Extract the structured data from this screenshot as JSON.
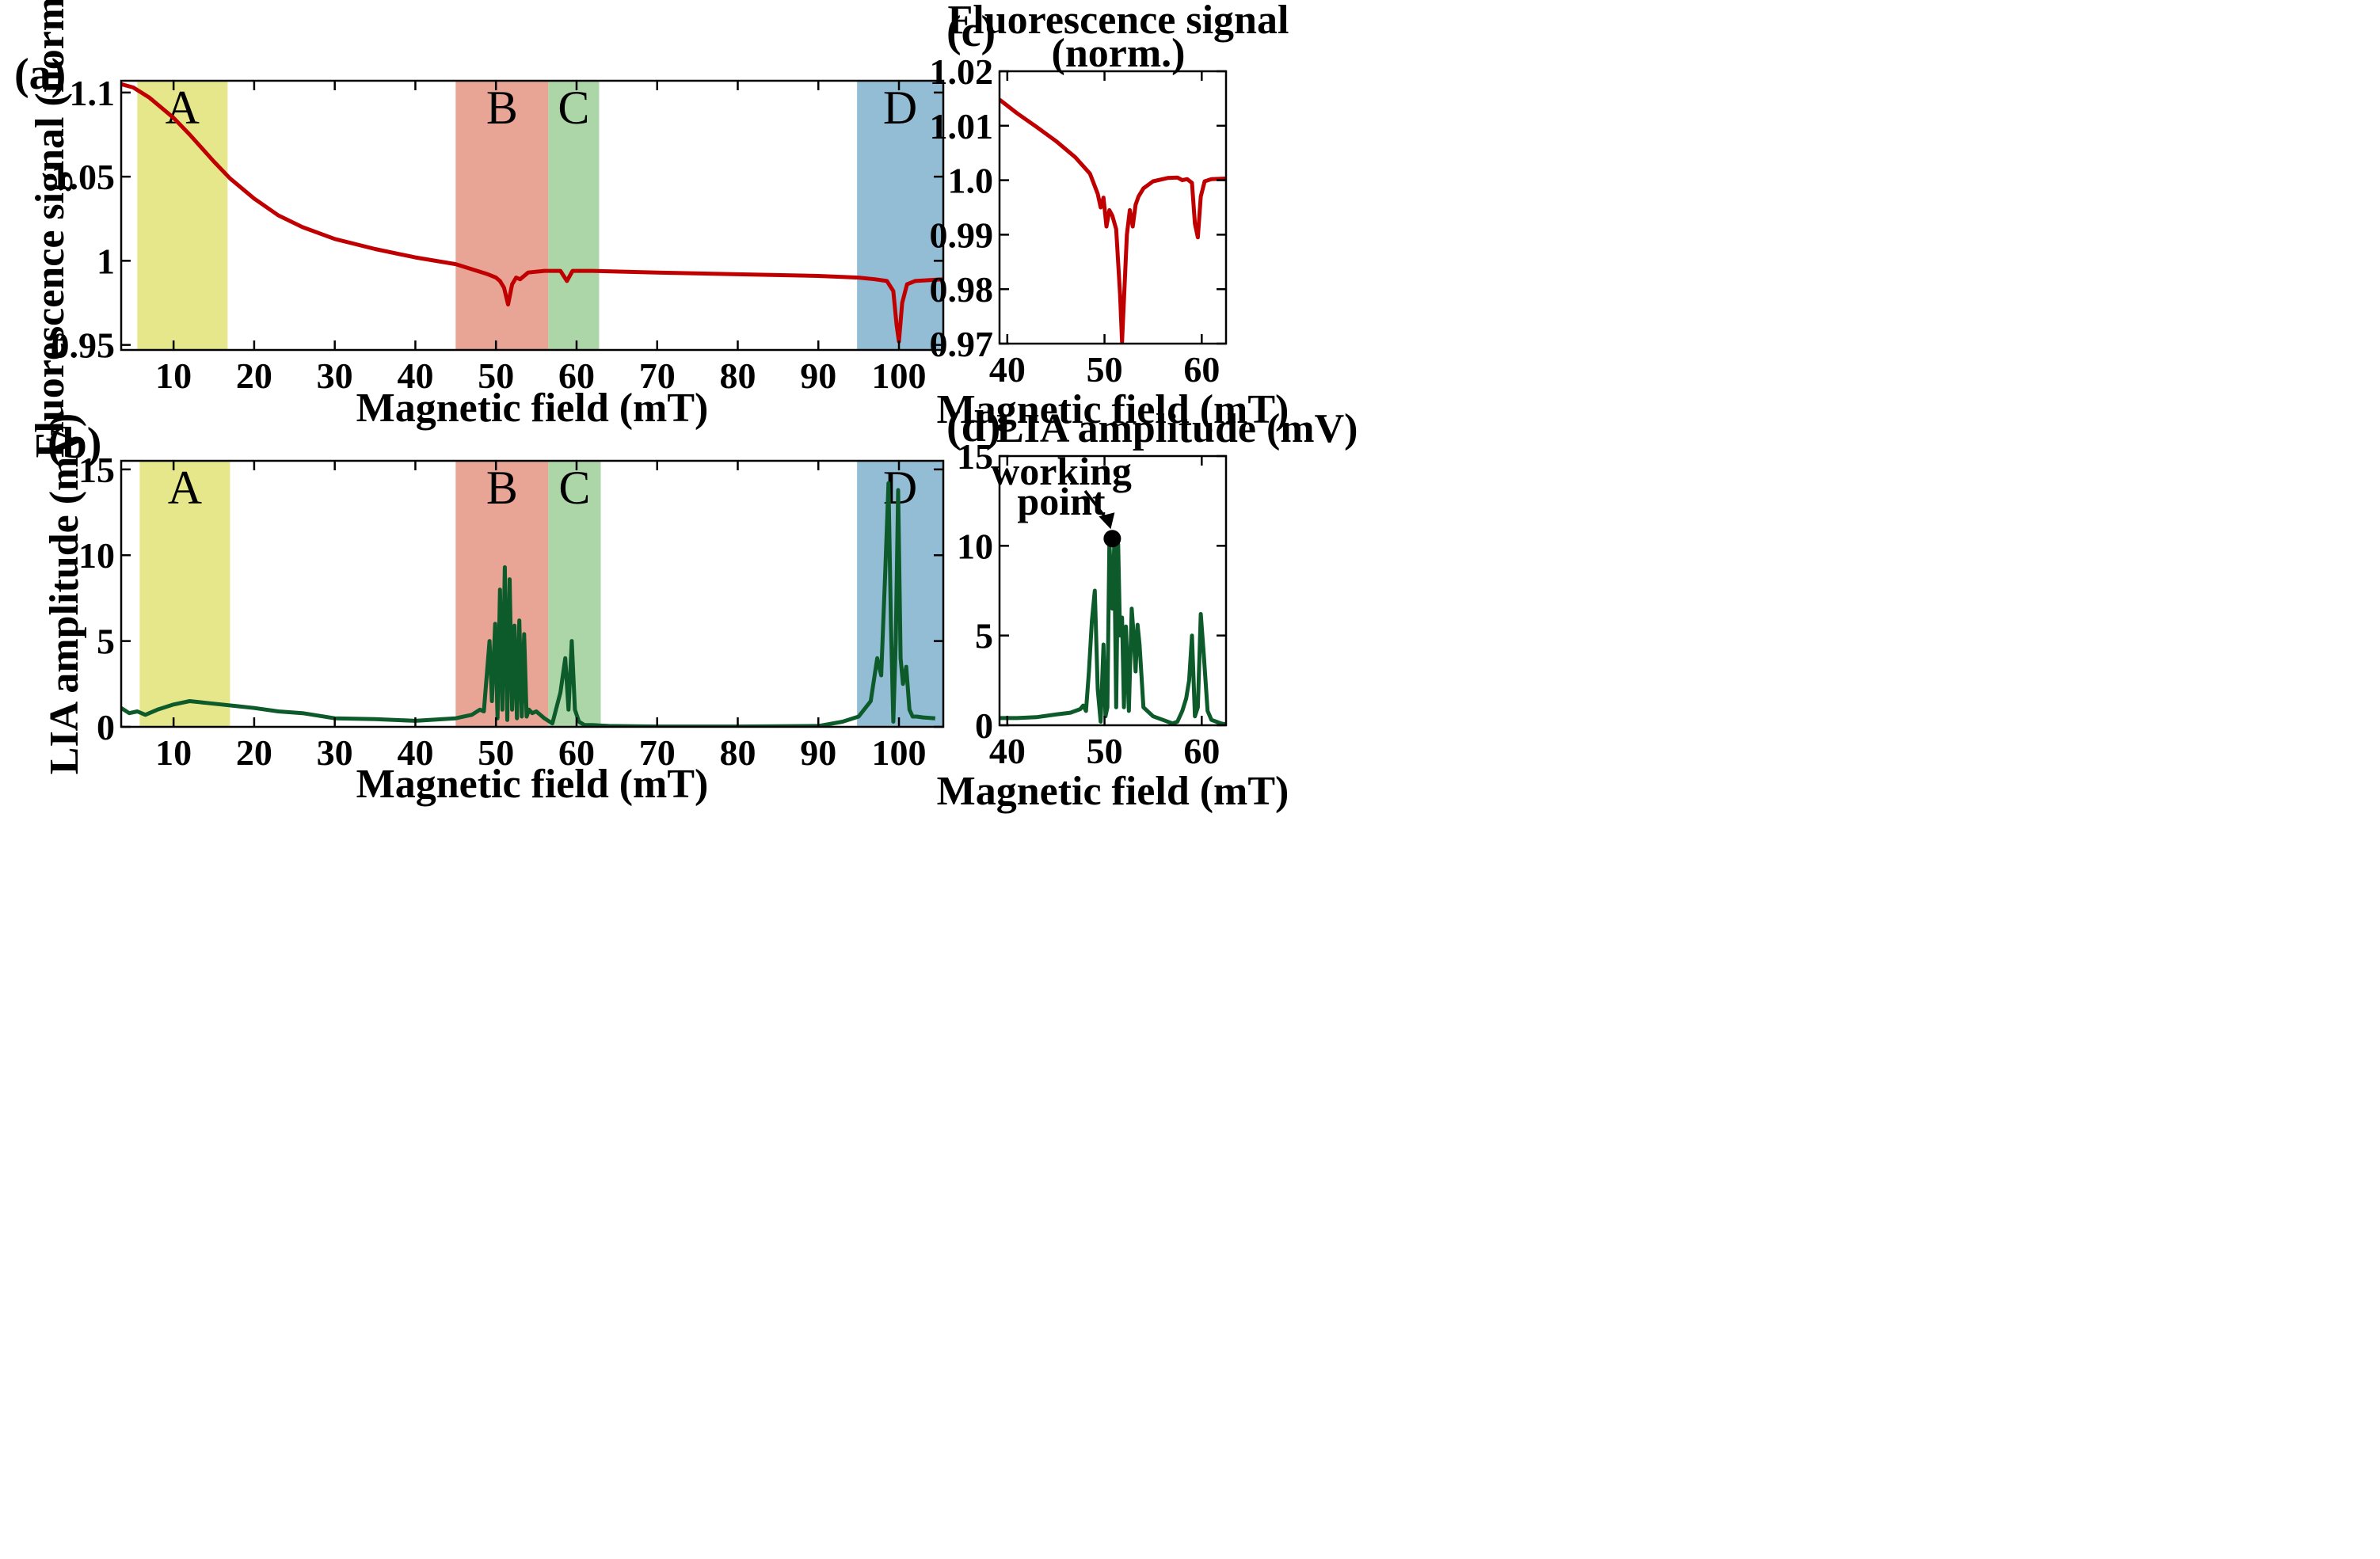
{
  "chart_data": [
    {
      "id": "a",
      "type": "line",
      "panel_label": "(a)",
      "xlabel": "Magnetic field (mT)",
      "ylabel": "Fluorescence signal (norm.)",
      "xlim": [
        3.5,
        105.5
      ],
      "ylim": [
        0.947,
        1.107
      ],
      "xticks": [
        10,
        20,
        30,
        40,
        50,
        60,
        70,
        80,
        90,
        100
      ],
      "yticks": [
        0.95,
        1,
        1.05,
        1.1
      ],
      "ytick_labels": [
        "0.95",
        "1",
        "1.05",
        "1.1"
      ],
      "line_color": "#c00000",
      "regions": [
        {
          "label": "A",
          "x0": 5.5,
          "x1": 16.7,
          "color": "#e6e68a"
        },
        {
          "label": "B",
          "x0": 45.0,
          "x1": 56.5,
          "color": "#e8a494"
        },
        {
          "label": "C",
          "x0": 56.5,
          "x1": 62.8,
          "color": "#acd6a8"
        },
        {
          "label": "D",
          "x0": 94.8,
          "x1": 105.5,
          "color": "#93bdd4"
        }
      ],
      "x": [
        3.5,
        5,
        7,
        10,
        12,
        15,
        17,
        20,
        23,
        26,
        30,
        35,
        40,
        45,
        47,
        49,
        50,
        50.5,
        51,
        51.5,
        52,
        52.5,
        53,
        54,
        56,
        58,
        58.8,
        59.5,
        62,
        70,
        80,
        90,
        95,
        97,
        98.5,
        99.3,
        99.7,
        100.0,
        100.4,
        101,
        102,
        105.5
      ],
      "y": [
        1.105,
        1.103,
        1.097,
        1.085,
        1.075,
        1.059,
        1.049,
        1.037,
        1.027,
        1.02,
        1.013,
        1.007,
        1.002,
        0.998,
        0.995,
        0.992,
        0.99,
        0.988,
        0.984,
        0.974,
        0.986,
        0.99,
        0.989,
        0.993,
        0.994,
        0.994,
        0.988,
        0.994,
        0.994,
        0.993,
        0.992,
        0.991,
        0.99,
        0.989,
        0.988,
        0.982,
        0.962,
        0.952,
        0.975,
        0.986,
        0.988,
        0.989
      ]
    },
    {
      "id": "b",
      "type": "line",
      "panel_label": "(b)",
      "xlabel": "Magnetic field (mT)",
      "ylabel": "LIA amplitude (mV)",
      "xlim": [
        3.5,
        105.5
      ],
      "ylim": [
        0,
        15.5
      ],
      "xticks": [
        10,
        20,
        30,
        40,
        50,
        60,
        70,
        80,
        90,
        100
      ],
      "yticks": [
        0,
        5,
        10,
        15
      ],
      "ytick_labels": [
        "0",
        "5",
        "10",
        "15"
      ],
      "line_color": "#0d5a2a",
      "regions": [
        {
          "label": "A",
          "x0": 5.8,
          "x1": 17.0,
          "color": "#e6e68a"
        },
        {
          "label": "B",
          "x0": 45.0,
          "x1": 56.5,
          "color": "#e8a494"
        },
        {
          "label": "C",
          "x0": 56.5,
          "x1": 63.0,
          "color": "#acd6a8"
        },
        {
          "label": "D",
          "x0": 94.8,
          "x1": 105.5,
          "color": "#93bdd4"
        }
      ],
      "x": [
        3.5,
        4.5,
        5.5,
        6.5,
        8,
        10,
        12,
        14,
        16,
        18,
        20,
        23,
        26,
        30,
        35,
        40,
        45,
        47,
        48,
        48.5,
        49.2,
        49.5,
        49.9,
        50.2,
        50.5,
        50.8,
        51.1,
        51.4,
        51.7,
        52.0,
        52.3,
        52.6,
        52.9,
        53.2,
        53.5,
        53.8,
        54.1,
        54.5,
        55,
        56,
        57,
        58,
        58.6,
        59.0,
        59.4,
        59.8,
        60.3,
        61,
        62,
        64,
        70,
        80,
        90,
        93,
        95,
        96.5,
        97.3,
        97.8,
        98.3,
        98.7,
        99.0,
        99.3,
        99.6,
        99.9,
        100.2,
        100.5,
        100.9,
        101.3,
        101.7,
        102.2,
        103,
        104.5
      ],
      "y": [
        1.1,
        0.8,
        0.9,
        0.7,
        1.0,
        1.3,
        1.5,
        1.4,
        1.3,
        1.2,
        1.1,
        0.9,
        0.8,
        0.5,
        0.45,
        0.35,
        0.5,
        0.7,
        1.0,
        0.9,
        5.0,
        1.5,
        6.0,
        0.5,
        8.0,
        1.0,
        9.3,
        0.4,
        8.6,
        1.0,
        5.9,
        0.5,
        6.2,
        0.6,
        5.4,
        0.6,
        1.0,
        0.8,
        0.9,
        0.5,
        0.2,
        2.0,
        4.0,
        1.0,
        5.0,
        1.0,
        0.3,
        0.1,
        0.1,
        0.05,
        0.02,
        0.02,
        0.05,
        0.3,
        0.6,
        1.5,
        4.0,
        3.0,
        9.0,
        14.2,
        6.0,
        0.3,
        5.0,
        13.8,
        4.0,
        2.5,
        3.5,
        1.0,
        0.6,
        0.6,
        0.55,
        0.5
      ]
    },
    {
      "id": "c",
      "type": "line",
      "panel_label": "(c)",
      "title": "Fluorescence signal",
      "title_line2": "(norm.)",
      "xlabel": "Magnetic field (mT)",
      "ylabel": "",
      "xlim": [
        39.2,
        62.5
      ],
      "ylim": [
        0.97,
        1.02
      ],
      "xticks": [
        40,
        50,
        60
      ],
      "yticks": [
        0.97,
        0.98,
        0.99,
        1.0,
        1.01,
        1.02
      ],
      "ytick_labels": [
        "0.97",
        "0.98",
        "0.99",
        "1.0",
        "1.01",
        "1.02"
      ],
      "line_color": "#c00000",
      "x": [
        39.2,
        41,
        43,
        45,
        47,
        48.5,
        49.3,
        49.6,
        49.9,
        50.2,
        50.5,
        50.8,
        51.2,
        51.6,
        51.8,
        52.0,
        52.3,
        52.6,
        52.9,
        53.2,
        53.5,
        54,
        55,
        56.5,
        57.5,
        58.0,
        58.5,
        59.0,
        59.3,
        59.6,
        59.9,
        60.3,
        61,
        62.5
      ],
      "y": [
        1.0148,
        1.0123,
        1.0098,
        1.0072,
        1.0042,
        1.0012,
        0.9975,
        0.995,
        0.9968,
        0.9915,
        0.9945,
        0.9935,
        0.991,
        0.979,
        0.9703,
        0.978,
        0.99,
        0.9945,
        0.9915,
        0.9955,
        0.997,
        0.9985,
        0.9998,
        1.0004,
        1.0005,
        1.0,
        1.0002,
        0.9995,
        0.992,
        0.9895,
        0.997,
        0.9998,
        1.0002,
        1.0003
      ]
    },
    {
      "id": "d",
      "type": "line",
      "panel_label": "(d)",
      "title": "LIA amplitude (mV)",
      "xlabel": "Magnetic field (mT)",
      "ylabel": "",
      "xlim": [
        39.2,
        62.5
      ],
      "ylim": [
        0,
        15
      ],
      "xticks": [
        40,
        50,
        60
      ],
      "yticks": [
        0,
        5,
        10,
        15
      ],
      "ytick_labels": [
        "0",
        "5",
        "10",
        "15"
      ],
      "line_color": "#0d5a2a",
      "annotation": {
        "line1": "working",
        "line2": "point",
        "x": 50.8,
        "y": 10.4
      },
      "x": [
        39.2,
        41,
        43,
        45,
        46.5,
        47.5,
        47.8,
        48.1,
        48.4,
        48.7,
        49.0,
        49.3,
        49.6,
        49.9,
        50.1,
        50.3,
        50.5,
        50.8,
        51.0,
        51.2,
        51.4,
        51.6,
        51.8,
        52.0,
        52.2,
        52.5,
        52.8,
        53.0,
        53.2,
        53.4,
        53.6,
        54,
        55,
        56,
        57,
        57.5,
        58.0,
        58.4,
        58.7,
        59.0,
        59.3,
        59.6,
        59.9,
        60.2,
        60.6,
        61,
        61.5,
        62.0,
        62.5
      ],
      "y": [
        0.4,
        0.4,
        0.45,
        0.6,
        0.7,
        0.9,
        1.1,
        0.8,
        3.0,
        5.8,
        7.5,
        2.0,
        0.2,
        4.5,
        0.5,
        1.0,
        10.2,
        6.5,
        10.0,
        1.0,
        10.1,
        5.0,
        6.0,
        1.0,
        5.5,
        0.8,
        6.5,
        5.0,
        3.0,
        5.6,
        4.5,
        1.0,
        0.5,
        0.3,
        0.1,
        0.2,
        0.8,
        1.5,
        2.5,
        5.0,
        0.5,
        1.0,
        6.2,
        4.0,
        0.8,
        0.3,
        0.2,
        0.1,
        0.05
      ]
    }
  ]
}
